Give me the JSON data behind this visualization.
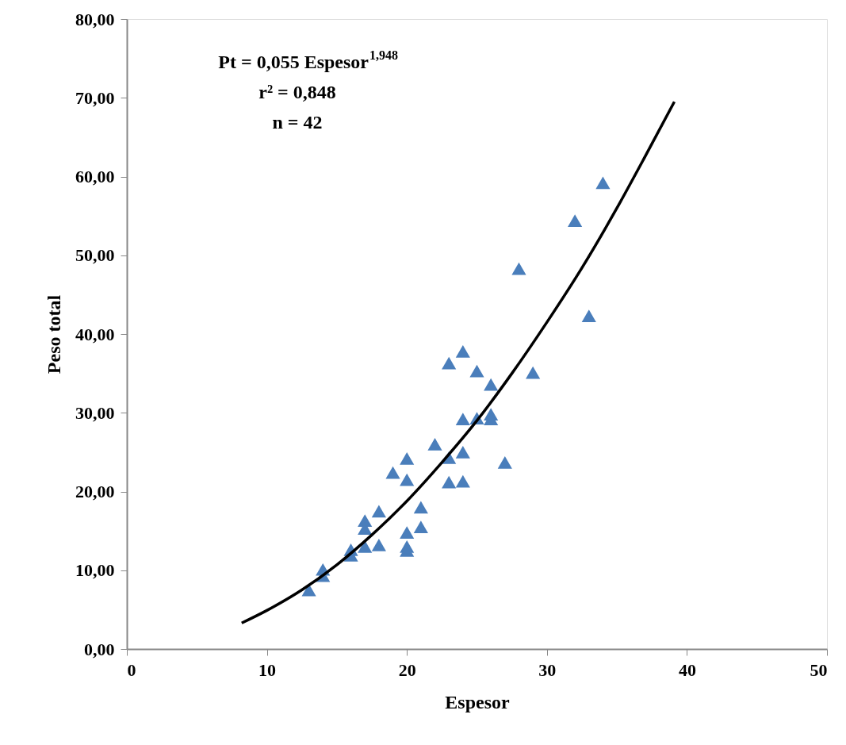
{
  "chart_data": {
    "type": "scatter",
    "xlabel": "Espesor",
    "ylabel": "Peso total",
    "xlim": [
      0,
      50
    ],
    "xticks": [
      0,
      10,
      20,
      30,
      40,
      50
    ],
    "ylim": [
      0,
      80
    ],
    "yticks": [
      {
        "value": 0,
        "label": "0,00"
      },
      {
        "value": 10,
        "label": "10,00"
      },
      {
        "value": 20,
        "label": "20,00"
      },
      {
        "value": 30,
        "label": "30,00"
      },
      {
        "value": 40,
        "label": "40,00"
      },
      {
        "value": 50,
        "label": "50,00"
      },
      {
        "value": 60,
        "label": "60,00"
      },
      {
        "value": 70,
        "label": "70,00"
      },
      {
        "value": 80,
        "label": "80,00"
      }
    ],
    "grid": false,
    "annotations": [
      "Pt = 0,055 Espesor$^{1,948}$",
      "r² = 0,848",
      "n = 42"
    ],
    "series": [
      {
        "color": "#4a7ebb",
        "marker": "triangle",
        "x": [
          13,
          14,
          14,
          16,
          16,
          17,
          17,
          17,
          18,
          18,
          19,
          20,
          20,
          20,
          20,
          20,
          21,
          21,
          22,
          23,
          23,
          23,
          24,
          24,
          24,
          24,
          25,
          25,
          26,
          26,
          26,
          27,
          28,
          29,
          32,
          33,
          34
        ],
        "values": [
          7.5,
          10.1,
          9.3,
          12.6,
          11.9,
          16.3,
          15.3,
          13.0,
          17.5,
          13.2,
          22.4,
          24.2,
          21.5,
          14.8,
          13.0,
          12.5,
          18.0,
          15.5,
          26.0,
          36.3,
          24.3,
          21.2,
          37.8,
          29.2,
          25.0,
          21.3,
          35.3,
          29.3,
          33.6,
          29.8,
          29.2,
          23.7,
          48.3,
          35.1,
          54.4,
          42.3,
          59.2
        ]
      },
      {
        "type": "line",
        "color": "#000000",
        "marker": "none",
        "line_style": "solid",
        "x": [
          8.2,
          10,
          12.5,
          15,
          17.5,
          20,
          22.5,
          25,
          27.5,
          30,
          32.5,
          35,
          37,
          39.1
        ],
        "values": [
          3.3,
          4.9,
          7.5,
          10.7,
          14.5,
          18.8,
          23.7,
          29.0,
          35.0,
          41.5,
          48.4,
          56.0,
          62.5,
          69.5
        ]
      }
    ]
  }
}
